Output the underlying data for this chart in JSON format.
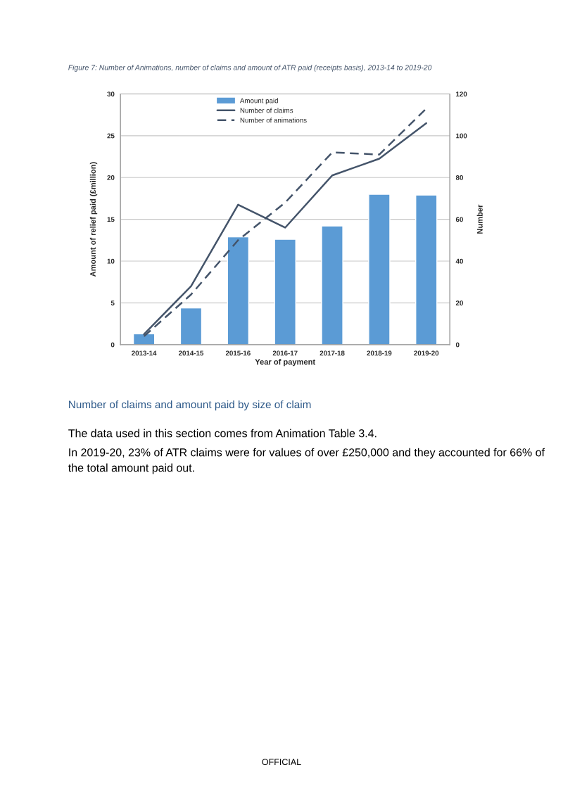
{
  "chart_data": {
    "type": "bar",
    "title": "Figure 7: Number of Animations, number of claims and amount of ATR paid (receipts basis), 2013-14 to 2019-20",
    "xlabel": "Year of payment",
    "ylabel": "Amount of relief paid (£million)",
    "y2label": "Number",
    "categories": [
      "2013-14",
      "2014-15",
      "2015-16",
      "2016-17",
      "2017-18",
      "2018-19",
      "2019-20"
    ],
    "series": [
      {
        "name": "Amount paid",
        "color": "#5b9bd5",
        "values": [
          1.3,
          4.4,
          12.9,
          12.6,
          14.2,
          18.0,
          17.9
        ]
      },
      {
        "name": "Number of claims",
        "type": "line",
        "axis": "y2",
        "line_style": "solid",
        "color": "#44546a",
        "values": [
          5,
          28,
          67,
          56,
          81,
          89,
          106
        ]
      },
      {
        "name": "Number of animations",
        "type": "line",
        "axis": "y2",
        "line_style": "dashed",
        "color": "#44546a",
        "values": [
          4,
          24,
          50,
          68,
          92,
          91,
          113
        ]
      }
    ],
    "ylim": [
      0,
      30
    ],
    "yticks": [
      0,
      5,
      10,
      15,
      20,
      25,
      30
    ],
    "y2lim": [
      0,
      120
    ],
    "y2ticks": [
      0,
      20,
      40,
      60,
      80,
      100,
      120
    ],
    "grid": "y",
    "legend": "top",
    "annotations": [
      "Number of claims and amount paid by size of claim",
      "The data used in this section comes from Animation Table 3.4.",
      "In 2019-20, 23% of ATR claims were for values of over £250,000 and they accounted for 66% of the total amount paid out.",
      "OFFICIAL"
    ]
  }
}
